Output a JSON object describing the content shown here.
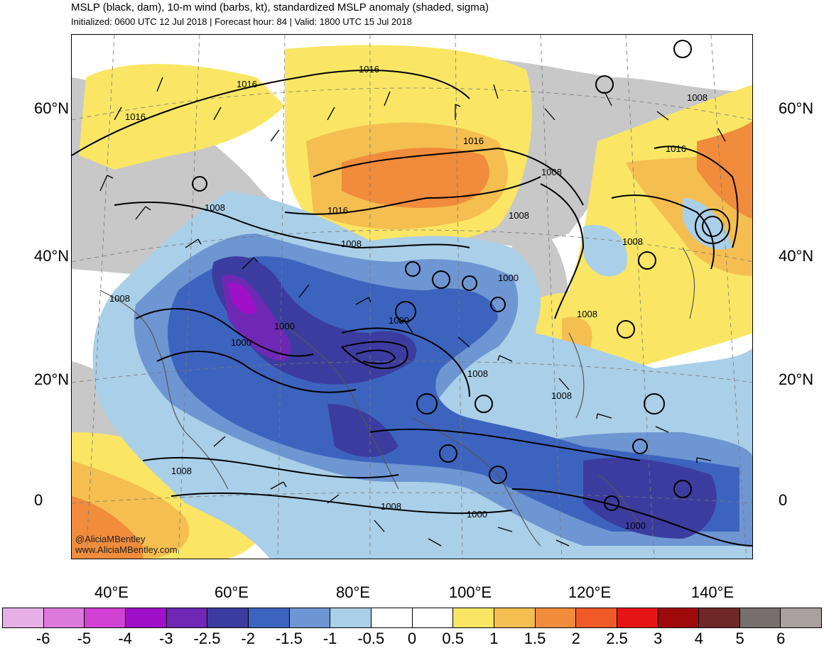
{
  "title": "MSLP (black, dam), 10-m wind (barbs, kt), standardized MSLP anomaly (shaded, sigma)",
  "subtitle": "Initialized: 0600 UTC 12 Jul 2018 | Forecast hour: 84 | Valid: 1800 UTC 15 Jul 2018",
  "lat_labels": [
    "60°N",
    "40°N",
    "20°N",
    "0"
  ],
  "lon_labels": [
    "40°E",
    "60°E",
    "80°E",
    "100°E",
    "120°E",
    "140°E"
  ],
  "isobar_labels": [
    "1016",
    "1016",
    "1016",
    "1016",
    "1016",
    "1016",
    "1008",
    "1008",
    "1008",
    "1008",
    "1008",
    "1008",
    "1008",
    "1008",
    "1008",
    "1008",
    "1008",
    "1008",
    "1000",
    "1000",
    "1000",
    "1000",
    "1000",
    "1000"
  ],
  "credit": [
    "@AliciaMBentley",
    "www.AliciaMBentley.com"
  ],
  "colorbar": {
    "labels": [
      "-6",
      "-5",
      "-4",
      "-3",
      "-2.5",
      "-2",
      "-1.5",
      "-1",
      "-0.5",
      "0",
      "0.5",
      "1",
      "1.5",
      "2",
      "2.5",
      "3",
      "4",
      "5",
      "6"
    ],
    "colors": [
      "#e6b0e6",
      "#dc7adc",
      "#d242d2",
      "#a010c8",
      "#6e28b4",
      "#3c3ca0",
      "#3c64be",
      "#6e96d2",
      "#aacfe8",
      "#ffffff",
      "#ffffff",
      "#fae664",
      "#f5be50",
      "#f08c3c",
      "#f05a28",
      "#e61414",
      "#a00a0a",
      "#6e2828",
      "#786e6e",
      "#aaa0a0"
    ]
  }
}
